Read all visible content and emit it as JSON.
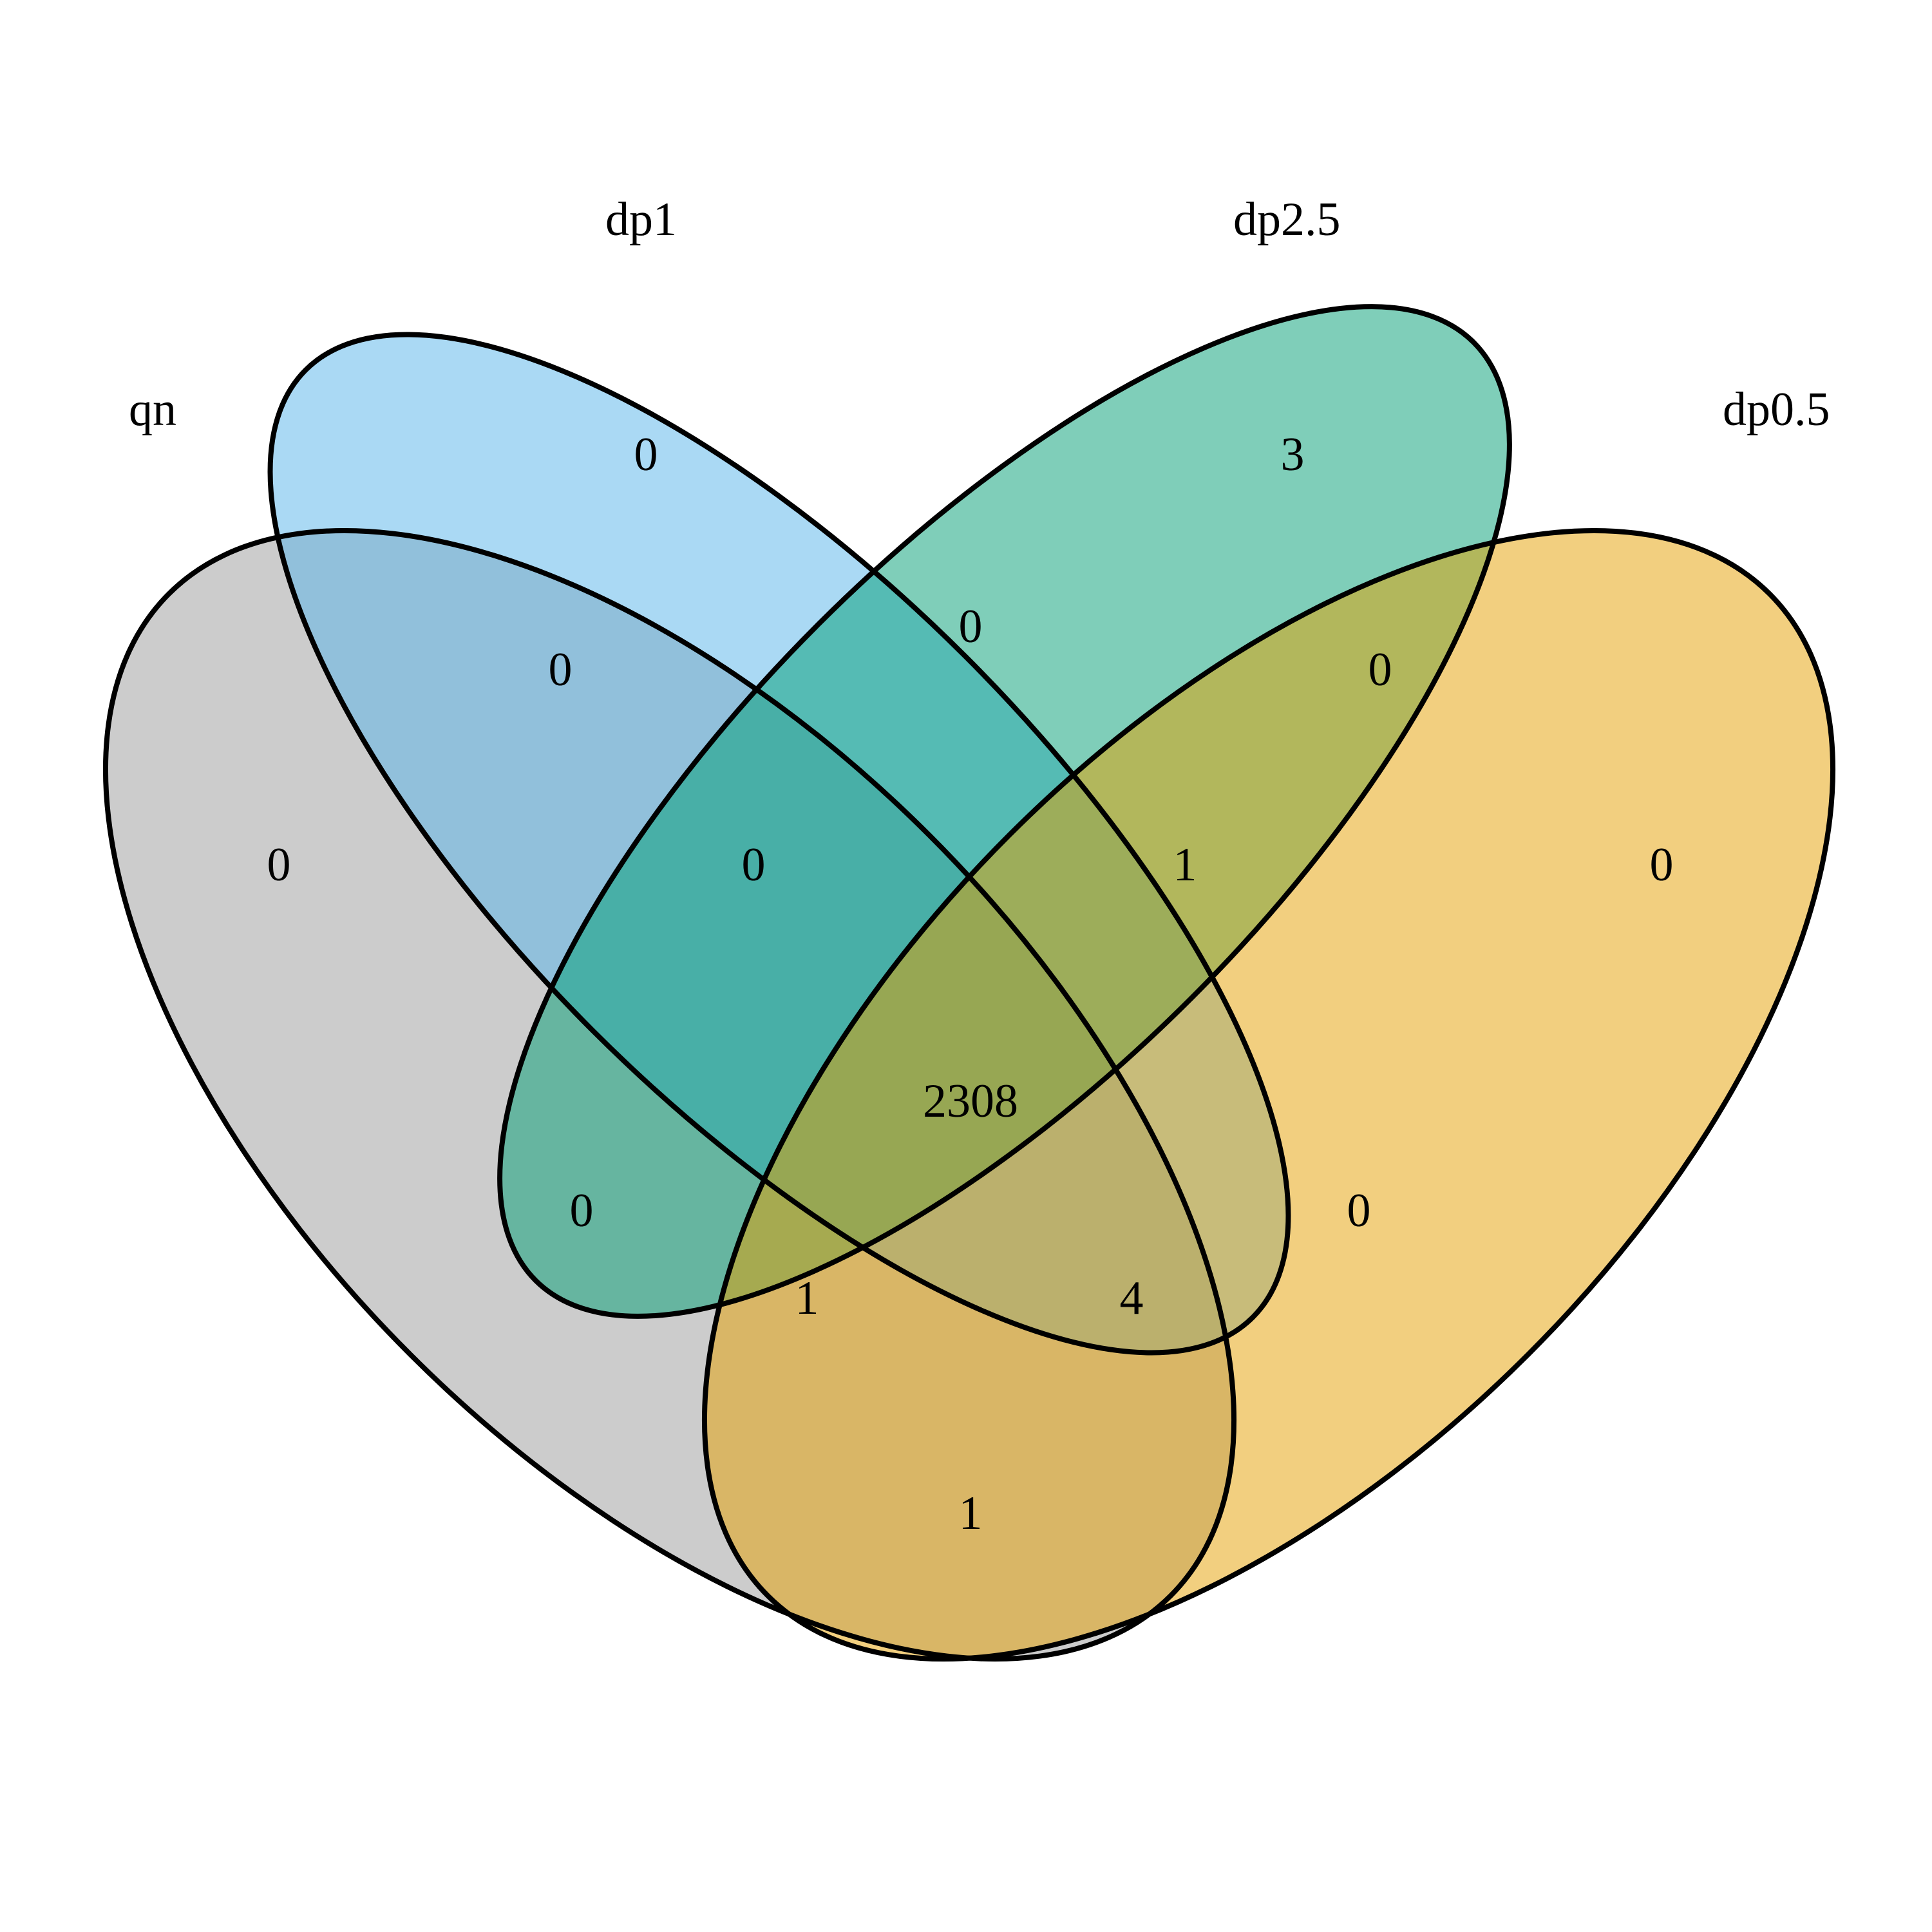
{
  "sets": {
    "qn": {
      "label": "qn",
      "color": "#999999"
    },
    "dp1": {
      "label": "dp1",
      "color": "#56B4E9"
    },
    "dp2_5": {
      "label": "dp2.5",
      "color": "#009E73"
    },
    "dp0_5": {
      "label": "dp0.5",
      "color": "#E69F00"
    }
  },
  "regions": {
    "qn_only": "0",
    "dp1_only": "0",
    "dp2_5_only": "3",
    "dp0_5_only": "0",
    "qn_dp1": "0",
    "dp1_dp2_5": "0",
    "dp2_5_dp0_5": "0",
    "qn_dp1_dp2_5": "0",
    "dp1_dp2_5_dp0_5": "1",
    "qn_dp2_5": "0",
    "dp1_dp0_5": "0",
    "all_four": "2308",
    "qn_dp2_5_dp0_5": "1",
    "qn_dp1_dp0_5": "4",
    "qn_dp0_5": "1"
  }
}
